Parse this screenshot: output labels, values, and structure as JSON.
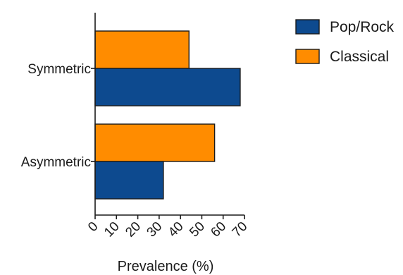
{
  "chart_data": {
    "type": "bar",
    "orientation": "horizontal",
    "categories": [
      "Symmetric",
      "Asymmetric"
    ],
    "series": [
      {
        "name": "Pop/Rock",
        "values": [
          68,
          32
        ],
        "color": "#0d4a8f"
      },
      {
        "name": "Classical",
        "values": [
          44,
          56
        ],
        "color": "#ff8c00"
      }
    ],
    "xlabel": "Prevalence (%)",
    "ylabel": "",
    "xlim": [
      0,
      70
    ],
    "xticks": [
      "0",
      "10",
      "20",
      "30",
      "40",
      "50",
      "60",
      "70"
    ],
    "grid": false,
    "legend_position": "top-right"
  }
}
